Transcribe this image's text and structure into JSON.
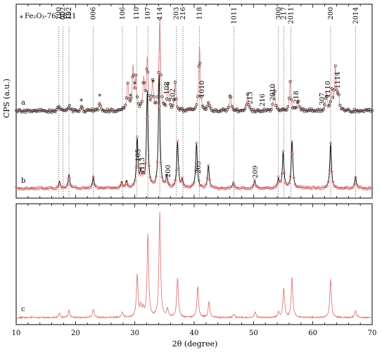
{
  "chart_data": {
    "type": "line",
    "xlabel": "2θ (degree)",
    "ylabel": "CPS (a.u.)",
    "xlim": [
      10,
      70
    ],
    "x_ticks": [
      10,
      20,
      30,
      40,
      50,
      60,
      70
    ],
    "annotation": "Fe₂O₃-76-1821",
    "annotation_marker": "∗",
    "colors": {
      "sim": "#e07a7a",
      "exp_b": "#e07a7a",
      "fit": "#000000",
      "exp_a": "#333333",
      "ref": "#555555",
      "axes": "#000000"
    },
    "reference_lines": [
      {
        "x": 17.2,
        "label": "100"
      },
      {
        "x": 17.9,
        "label": "002"
      },
      {
        "x": 18.9,
        "label": "102"
      },
      {
        "x": 23.0,
        "label": "006"
      },
      {
        "x": 27.9,
        "label": "106"
      },
      {
        "x": 30.3,
        "label": "110"
      },
      {
        "x": 32.2,
        "label": "107"
      },
      {
        "x": 34.2,
        "label": "114"
      },
      {
        "x": 37.0,
        "label": "203"
      },
      {
        "x": 38.1,
        "label": "216"
      },
      {
        "x": 40.9,
        "label": "118"
      },
      {
        "x": 46.7,
        "label": "1011"
      },
      {
        "x": 54.2,
        "label": "300"
      },
      {
        "x": 55.1,
        "label": "217"
      },
      {
        "x": 56.3,
        "label": "2011"
      },
      {
        "x": 63.0,
        "label": "200"
      },
      {
        "x": 67.2,
        "label": "2014"
      }
    ],
    "star_markers": [
      21.0,
      24.1,
      29.3,
      30.0,
      33.1
    ],
    "series": [
      {
        "name": "a",
        "baseline": 0,
        "peaks": [
          {
            "x": 17.2,
            "h": 0.06
          },
          {
            "x": 18.9,
            "h": 0.06
          },
          {
            "x": 21.0,
            "h": 0.05
          },
          {
            "x": 24.1,
            "h": 0.1
          },
          {
            "x": 28.8,
            "h": 0.3
          },
          {
            "x": 29.7,
            "h": 0.45
          },
          {
            "x": 30.2,
            "h": 0.32
          },
          {
            "x": 31.5,
            "h": 0.35
          },
          {
            "x": 32.1,
            "h": 0.55
          },
          {
            "x": 33.0,
            "h": 0.3
          },
          {
            "x": 34.2,
            "h": 1.0
          },
          {
            "x": 35.6,
            "h": 0.28
          },
          {
            "x": 36.8,
            "h": 0.3
          },
          {
            "x": 40.9,
            "h": 0.7
          },
          {
            "x": 42.4,
            "h": 0.1
          },
          {
            "x": 46.1,
            "h": 0.2
          },
          {
            "x": 49.0,
            "h": 0.18
          },
          {
            "x": 53.5,
            "h": 0.28
          },
          {
            "x": 56.2,
            "h": 0.32
          },
          {
            "x": 57.5,
            "h": 0.12
          },
          {
            "x": 62.3,
            "h": 0.2
          },
          {
            "x": 63.2,
            "h": 0.22
          },
          {
            "x": 63.8,
            "h": 0.45
          },
          {
            "x": 64.3,
            "h": 0.18
          }
        ],
        "peak_labels": [
          {
            "x": 35.4,
            "label": "108"
          },
          {
            "x": 36.4,
            "label": "202"
          },
          {
            "x": 41.3,
            "label": "1010"
          },
          {
            "x": 49.4,
            "label": "213"
          },
          {
            "x": 51.5,
            "label": "216"
          },
          {
            "x": 53.2,
            "label": "2010"
          },
          {
            "x": 57.2,
            "label": "218"
          },
          {
            "x": 61.6,
            "label": "307"
          },
          {
            "x": 62.5,
            "label": "1110"
          },
          {
            "x": 64.2,
            "label": "1114"
          }
        ]
      },
      {
        "name": "b",
        "baseline": 0,
        "peaks": [
          {
            "x": 17.3,
            "h": 0.06
          },
          {
            "x": 18.9,
            "h": 0.12
          },
          {
            "x": 23.0,
            "h": 0.1
          },
          {
            "x": 27.8,
            "h": 0.05
          },
          {
            "x": 28.6,
            "h": 0.06
          },
          {
            "x": 30.4,
            "h": 0.43
          },
          {
            "x": 31.0,
            "h": 0.12
          },
          {
            "x": 31.4,
            "h": 0.08
          },
          {
            "x": 32.1,
            "h": 0.85
          },
          {
            "x": 34.1,
            "h": 1.0
          },
          {
            "x": 35.4,
            "h": 0.1
          },
          {
            "x": 37.2,
            "h": 0.41
          },
          {
            "x": 38.0,
            "h": 0.07
          },
          {
            "x": 40.4,
            "h": 0.4
          },
          {
            "x": 42.4,
            "h": 0.2
          },
          {
            "x": 46.6,
            "h": 0.05
          },
          {
            "x": 50.2,
            "h": 0.07
          },
          {
            "x": 54.2,
            "h": 0.08
          },
          {
            "x": 55.0,
            "h": 0.32
          },
          {
            "x": 56.5,
            "h": 0.42
          },
          {
            "x": 63.0,
            "h": 0.4
          },
          {
            "x": 67.2,
            "h": 0.1
          }
        ],
        "peak_labels": [
          {
            "x": 30.6,
            "label": "105"
          },
          {
            "x": 31.2,
            "label": "113"
          },
          {
            "x": 35.6,
            "label": "200"
          },
          {
            "x": 40.7,
            "label": "205"
          },
          {
            "x": 50.3,
            "label": "209"
          }
        ]
      },
      {
        "name": "c",
        "baseline": 0,
        "peaks": [
          {
            "x": 17.3,
            "h": 0.04
          },
          {
            "x": 18.9,
            "h": 0.07
          },
          {
            "x": 23.0,
            "h": 0.08
          },
          {
            "x": 27.9,
            "h": 0.05
          },
          {
            "x": 30.4,
            "h": 0.4
          },
          {
            "x": 31.0,
            "h": 0.1
          },
          {
            "x": 31.4,
            "h": 0.07
          },
          {
            "x": 32.2,
            "h": 0.8
          },
          {
            "x": 34.2,
            "h": 1.0
          },
          {
            "x": 35.5,
            "h": 0.08
          },
          {
            "x": 37.2,
            "h": 0.38
          },
          {
            "x": 40.6,
            "h": 0.3
          },
          {
            "x": 42.5,
            "h": 0.15
          },
          {
            "x": 46.7,
            "h": 0.03
          },
          {
            "x": 50.3,
            "h": 0.05
          },
          {
            "x": 54.2,
            "h": 0.05
          },
          {
            "x": 55.1,
            "h": 0.28
          },
          {
            "x": 56.5,
            "h": 0.38
          },
          {
            "x": 63.0,
            "h": 0.37
          },
          {
            "x": 67.2,
            "h": 0.07
          }
        ]
      }
    ]
  }
}
